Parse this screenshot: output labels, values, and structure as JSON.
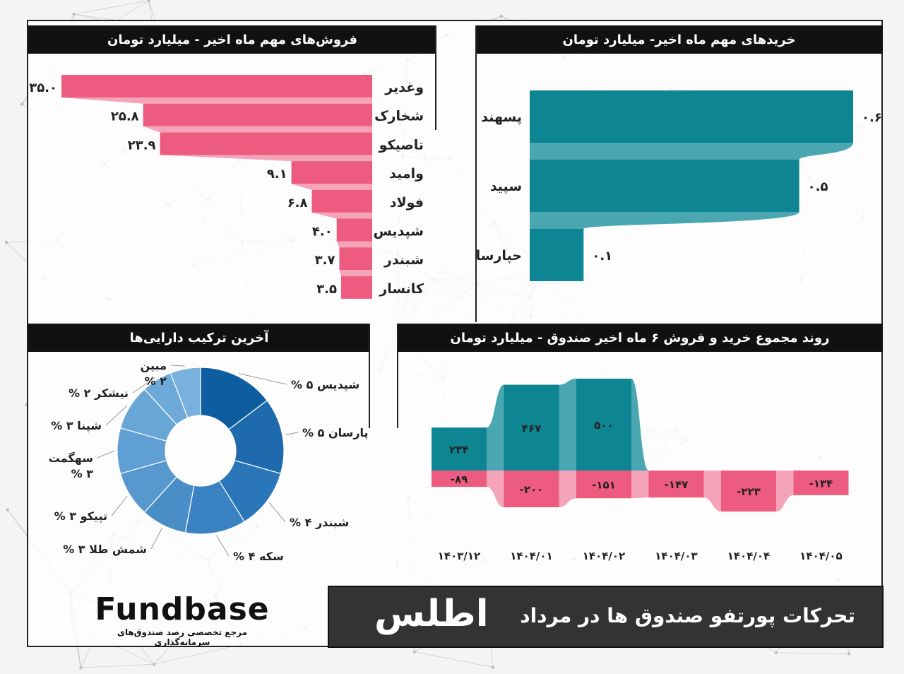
{
  "colors": {
    "sell": "#ee5b80",
    "sell_band": "#f4a3b9",
    "buy": "#0e8593",
    "buy_band": "#4aa7b1",
    "header_bg": "#111111",
    "donut": [
      "#0e5da1",
      "#1e6aad",
      "#2b76b8",
      "#3a82c1",
      "#4a8ec8",
      "#5799cf",
      "#5f9fd3",
      "#68a6d6",
      "#6eaad9",
      "#78b1dc"
    ]
  },
  "sales_panel": {
    "title": "فروش‌های مهم ماه اخیر - میلیارد تومان"
  },
  "buys_panel": {
    "title": "خریدهای مهم ماه اخیر- میلیارد تومان"
  },
  "assets_panel": {
    "title": "آخرین ترکیب دارایی‌ها"
  },
  "trend_panel": {
    "title": "روند مجموع خرید و فروش ۶ ماه اخیر صندوق - میلیارد تومان"
  },
  "banner": {
    "title": "تحرکات پورتفو صندوق ها در مرداد",
    "fund_name": "اطلس"
  },
  "logo": {
    "word": "Fundbase",
    "tagline": "مرجع تخصصی رصد صندوق‌های سرمایه‌گذاری"
  },
  "chart_data": [
    {
      "type": "bar",
      "title": "فروش‌های مهم ماه اخیر - میلیارد تومان",
      "orientation": "horizontal",
      "categories": [
        "وغدیر",
        "شخارک",
        "تاصیکو",
        "وامید",
        "فولاد",
        "شپدیس",
        "شبندر",
        "کانسار"
      ],
      "values": [
        35.0,
        25.8,
        23.9,
        9.1,
        6.8,
        4.0,
        3.7,
        3.5
      ],
      "value_labels": [
        "۳۵.۰",
        "۲۵.۸",
        "۲۳.۹",
        "۹.۱",
        "۶.۸",
        "۴.۰",
        "۳.۷",
        "۳.۵"
      ]
    },
    {
      "type": "bar",
      "title": "خریدهای مهم ماه اخیر- میلیارد تومان",
      "orientation": "horizontal",
      "categories": [
        "پسهند",
        "سپید",
        "حپارسا"
      ],
      "values": [
        0.6,
        0.5,
        0.1
      ],
      "value_labels": [
        "۰.۶",
        "۰.۵",
        "۰.۱"
      ]
    },
    {
      "type": "pie",
      "title": "آخرین ترکیب دارایی‌ها",
      "donut": true,
      "labels": [
        "شپدیس",
        "پارسان",
        "شبندر",
        "سکه",
        "شمش طلا",
        "تپیکو",
        "سهگمت",
        "شپنا",
        "نیشکر",
        "مبین"
      ],
      "values": [
        5,
        5,
        4,
        4,
        3,
        3,
        3,
        3,
        2,
        2
      ],
      "display_labels": [
        "% ۵ شپدیس",
        "% ۵ پارسان",
        "% ۴ شبندر",
        "% ۴ سکه",
        "% ۳ شمش طلا",
        "% ۳ تپیکو",
        "سهگمت\n% ۳",
        "% ۳ شپنا",
        "% ۲ نیشکر",
        "مبین\n% ۲"
      ]
    },
    {
      "type": "bar",
      "title": "روند مجموع خرید و فروش ۶ ماه اخیر صندوق - میلیارد تومان",
      "categories": [
        "۱۴۰۳/۱۲",
        "۱۴۰۴/۰۱",
        "۱۴۰۴/۰۲",
        "۱۴۰۴/۰۳",
        "۱۴۰۴/۰۴",
        "۱۴۰۴/۰۵"
      ],
      "series": [
        {
          "name": "",
          "values": [
            234,
            467,
            500,
            0,
            0,
            0
          ],
          "labels": [
            "۲۳۴",
            "۴۶۷",
            "۵۰۰",
            "",
            "",
            ""
          ]
        },
        {
          "name": "",
          "values": [
            -89,
            -200,
            -151,
            -147,
            -223,
            -134
          ],
          "labels": [
            "-۸۹",
            "-۲۰۰",
            "-۱۵۱",
            "-۱۴۷",
            "-۲۲۳",
            "-۱۳۴"
          ]
        }
      ]
    }
  ]
}
